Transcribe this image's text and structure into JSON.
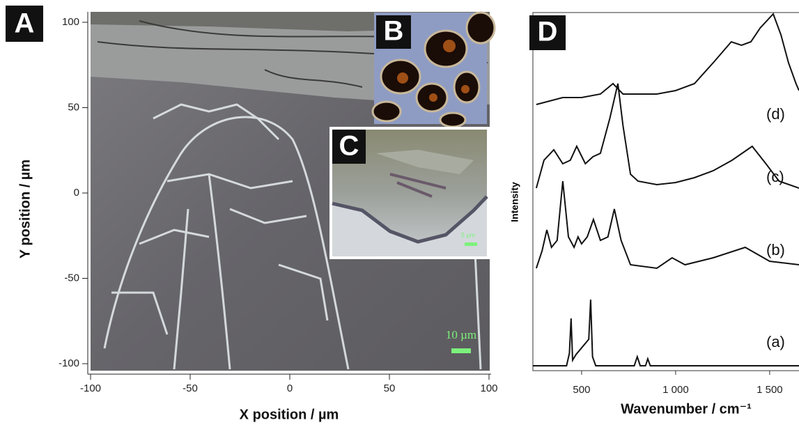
{
  "panel_a": {
    "label": "A",
    "xlabel": "X position / µm",
    "ylabel": "Y position / µm",
    "xlim": [
      -100,
      100
    ],
    "ylim": [
      -100,
      100
    ],
    "xticks": [
      -100,
      -50,
      0,
      50,
      100
    ],
    "yticks": [
      -100,
      -50,
      0,
      50,
      100
    ],
    "scale_bar": "10 µm"
  },
  "panel_b": {
    "label": "B"
  },
  "panel_c": {
    "label": "C",
    "scale_bar": "5 µm"
  },
  "chart_data": {
    "type": "line",
    "label": "D",
    "xlabel": "Wavenumber / cm⁻¹",
    "ylabel": "Intensity",
    "xlim": [
      241,
      1656
    ],
    "xticks": [
      500,
      {
        "value": 1000,
        "label": "1 000"
      },
      {
        "value": 1500,
        "label": "1 500"
      }
    ],
    "series": [
      {
        "name": "(a)",
        "color": "#111111",
        "x": [
          241,
          420,
          435,
          444,
          452,
          470,
          538,
          548,
          558,
          575,
          780,
          796,
          812,
          840,
          852,
          865,
          900,
          1656
        ],
        "values": [
          2,
          2,
          20,
          70,
          10,
          18,
          40,
          97,
          15,
          2,
          2,
          15,
          2,
          2,
          12,
          2,
          2,
          2
        ]
      },
      {
        "name": "(b)",
        "color": "#111111",
        "x": [
          259,
          290,
          315,
          340,
          370,
          400,
          430,
          460,
          481,
          500,
          530,
          563,
          600,
          640,
          674,
          710,
          760,
          900,
          981,
          1050,
          1200,
          1370,
          1500,
          1656
        ],
        "values": [
          0,
          25,
          55,
          30,
          40,
          125,
          45,
          30,
          45,
          35,
          45,
          70,
          40,
          45,
          85,
          40,
          5,
          0,
          15,
          5,
          15,
          30,
          10,
          5
        ]
      },
      {
        "name": "(c)",
        "color": "#111111",
        "x": [
          259,
          300,
          352,
          400,
          440,
          474,
          520,
          560,
          600,
          650,
          693,
          720,
          760,
          800,
          900,
          1000,
          1100,
          1200,
          1300,
          1407,
          1480,
          1550,
          1656
        ],
        "values": [
          0,
          40,
          55,
          35,
          40,
          60,
          35,
          45,
          50,
          100,
          150,
          90,
          20,
          10,
          5,
          8,
          15,
          25,
          40,
          60,
          35,
          10,
          0
        ]
      },
      {
        "name": "(d)",
        "color": "#111111",
        "x": [
          259,
          400,
          500,
          600,
          667,
          720,
          800,
          900,
          1000,
          1100,
          1200,
          1296,
          1350,
          1400,
          1450,
          1519,
          1560,
          1600,
          1640,
          1656
        ],
        "values": [
          0,
          10,
          10,
          15,
          30,
          15,
          15,
          15,
          20,
          30,
          60,
          90,
          85,
          90,
          110,
          130,
          100,
          60,
          30,
          20
        ]
      }
    ]
  }
}
